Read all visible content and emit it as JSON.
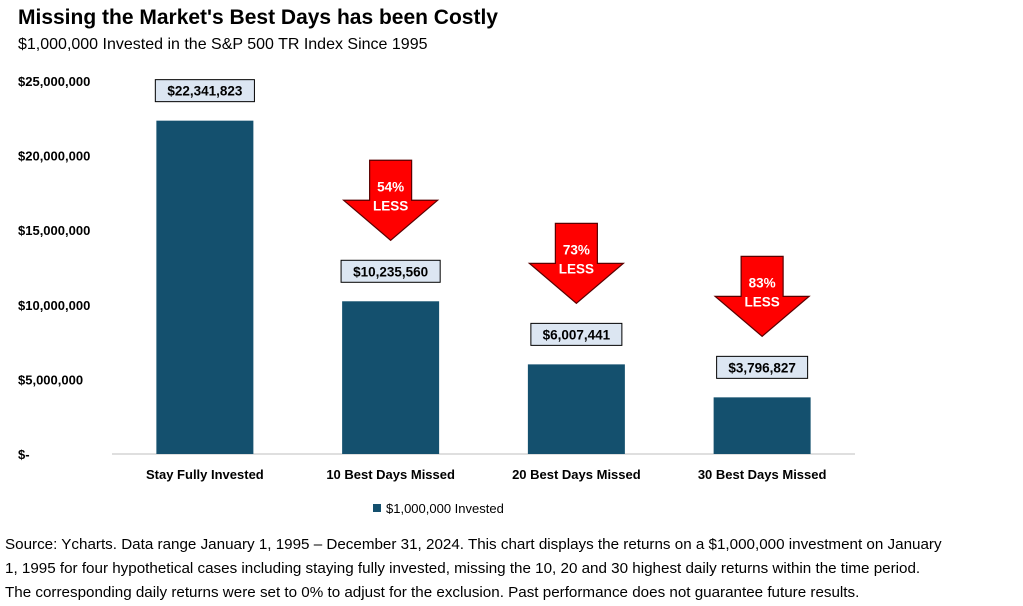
{
  "title": "Missing the Market's Best Days has been Costly",
  "subtitle": "$1,000,000 Invested in the S&P 500 TR Index Since 1995",
  "chart_data": {
    "type": "bar",
    "categories": [
      "Stay Fully Invested",
      "10 Best Days Missed",
      "20 Best Days Missed",
      "30 Best Days Missed"
    ],
    "series": [
      {
        "name": "$1,000,000 Invested",
        "values": [
          22341823,
          10235560,
          6007441,
          3796827
        ],
        "color": "#14506e"
      }
    ],
    "data_labels": [
      "$22,341,823",
      "$10,235,560",
      "$6,007,441",
      "$3,796,827"
    ],
    "y_ticks": [
      0,
      5000000,
      10000000,
      15000000,
      20000000,
      25000000
    ],
    "y_tick_labels": [
      "$-",
      "$5,000,000",
      "$10,000,000",
      "$15,000,000",
      "$20,000,000",
      "$25,000,000"
    ],
    "ylim": [
      0,
      25000000
    ],
    "grid": false,
    "legend_position": "bottom",
    "annotations": [
      {
        "category_index": 1,
        "line1": "54%",
        "line2": "LESS"
      },
      {
        "category_index": 2,
        "line1": "73%",
        "line2": "LESS"
      },
      {
        "category_index": 3,
        "line1": "83%",
        "line2": "LESS"
      }
    ],
    "arrow_color": "#ff0000",
    "label_box_fill": "#dce6f2"
  },
  "footnote": {
    "line1": "Source: Ycharts. Data range January 1, 1995 – December 31, 2024. This chart displays the returns on a $1,000,000 investment on January",
    "line2": "1, 1995 for four hypothetical cases including staying fully invested, missing the 10, 20 and 30 highest daily returns within the time period.",
    "line3": "The corresponding daily returns were set to 0% to adjust for the exclusion. Past performance does not guarantee future results."
  }
}
